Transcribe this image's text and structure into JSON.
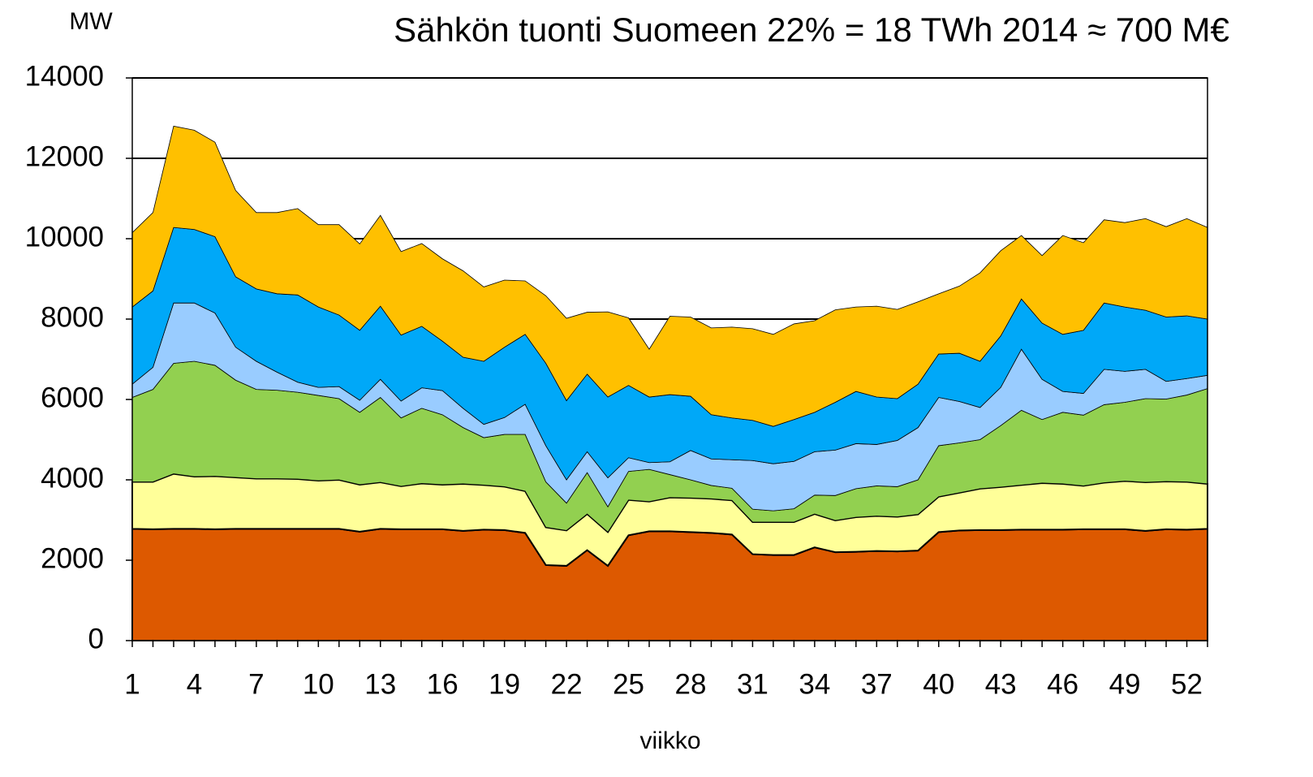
{
  "chart_data": {
    "type": "stacked_area",
    "title": "Sähkön tuonti Suomeen 22% = 18 TWh 2014 ≈ 700 M€",
    "y_label": "MW",
    "x_label": "viikko",
    "x": [
      1,
      2,
      3,
      4,
      5,
      6,
      7,
      8,
      9,
      10,
      11,
      12,
      13,
      14,
      15,
      16,
      17,
      18,
      19,
      20,
      21,
      22,
      23,
      24,
      25,
      26,
      27,
      28,
      29,
      30,
      31,
      32,
      33,
      34,
      35,
      36,
      37,
      38,
      39,
      40,
      41,
      42,
      43,
      44,
      45,
      46,
      47,
      48,
      49,
      50,
      51,
      52,
      53
    ],
    "xlim": [
      1,
      53
    ],
    "xticks": [
      1,
      4,
      7,
      10,
      13,
      16,
      19,
      22,
      25,
      28,
      31,
      34,
      37,
      40,
      43,
      46,
      49,
      52
    ],
    "ylim": [
      0,
      14000
    ],
    "yticks": [
      0,
      2000,
      4000,
      6000,
      8000,
      10000,
      12000,
      14000
    ],
    "grid": true,
    "series": [
      {
        "color": "#dd5900",
        "values": [
          2780,
          2770,
          2780,
          2780,
          2770,
          2780,
          2780,
          2780,
          2780,
          2780,
          2780,
          2710,
          2780,
          2770,
          2770,
          2770,
          2730,
          2760,
          2750,
          2680,
          1880,
          1860,
          2250,
          1860,
          2620,
          2720,
          2720,
          2700,
          2680,
          2640,
          2150,
          2130,
          2130,
          2320,
          2200,
          2210,
          2230,
          2220,
          2240,
          2700,
          2740,
          2750,
          2750,
          2760,
          2760,
          2760,
          2770,
          2770,
          2770,
          2730,
          2770,
          2760,
          2780
        ]
      },
      {
        "color": "#ffff99",
        "values": [
          1170,
          1180,
          1370,
          1300,
          1320,
          1280,
          1250,
          1250,
          1240,
          1200,
          1220,
          1170,
          1160,
          1070,
          1140,
          1110,
          1170,
          1110,
          1080,
          1040,
          940,
          880,
          900,
          840,
          880,
          740,
          840,
          850,
          850,
          850,
          800,
          820,
          820,
          830,
          790,
          860,
          870,
          860,
          900,
          880,
          940,
          1030,
          1070,
          1110,
          1160,
          1140,
          1080,
          1160,
          1200,
          1210,
          1190,
          1190,
          1120
        ]
      },
      {
        "color": "#92d050",
        "values": [
          2100,
          2300,
          2750,
          2870,
          2760,
          2420,
          2220,
          2200,
          2160,
          2120,
          2020,
          1800,
          2110,
          1700,
          1870,
          1740,
          1400,
          1180,
          1300,
          1410,
          1130,
          680,
          1030,
          630,
          710,
          800,
          570,
          450,
          330,
          300,
          320,
          280,
          330,
          470,
          620,
          710,
          750,
          750,
          860,
          1270,
          1240,
          1220,
          1530,
          1860,
          1580,
          1780,
          1760,
          1940,
          1960,
          2080,
          2050,
          2160,
          2370
        ]
      },
      {
        "color": "#99ccff",
        "values": [
          330,
          550,
          1500,
          1450,
          1300,
          820,
          700,
          450,
          250,
          200,
          300,
          300,
          450,
          420,
          510,
          600,
          480,
          330,
          420,
          750,
          900,
          580,
          520,
          720,
          340,
          170,
          320,
          730,
          660,
          710,
          1210,
          1170,
          1180,
          1080,
          1130,
          1120,
          1030,
          1150,
          1300,
          1200,
          1030,
          800,
          950,
          1520,
          1000,
          520,
          540,
          880,
          770,
          730,
          440,
          410,
          330
        ]
      },
      {
        "color": "#00a8f8",
        "values": [
          1920,
          1900,
          1880,
          1830,
          1900,
          1750,
          1800,
          1950,
          2170,
          2000,
          1780,
          1740,
          1820,
          1640,
          1530,
          1230,
          1270,
          1570,
          1750,
          1740,
          2050,
          1970,
          1930,
          2010,
          1800,
          1630,
          1670,
          1350,
          1100,
          1040,
          1000,
          930,
          1040,
          980,
          1190,
          1300,
          1180,
          1040,
          1080,
          1080,
          1200,
          1150,
          1280,
          1250,
          1400,
          1420,
          1570,
          1650,
          1600,
          1470,
          1600,
          1560,
          1400
        ]
      },
      {
        "color": "#ffc000",
        "values": [
          1850,
          1950,
          2520,
          2470,
          2350,
          2150,
          1900,
          2020,
          2150,
          2050,
          2250,
          2150,
          2260,
          2080,
          2060,
          2050,
          2150,
          1850,
          1670,
          1330,
          1680,
          2050,
          1540,
          2120,
          1680,
          1190,
          1950,
          1970,
          2160,
          2260,
          2280,
          2290,
          2380,
          2280,
          2300,
          2100,
          2260,
          2220,
          2050,
          1500,
          1670,
          2200,
          2120,
          1580,
          1680,
          2460,
          2180,
          2070,
          2100,
          2280,
          2250,
          2420,
          2280
        ]
      }
    ]
  }
}
